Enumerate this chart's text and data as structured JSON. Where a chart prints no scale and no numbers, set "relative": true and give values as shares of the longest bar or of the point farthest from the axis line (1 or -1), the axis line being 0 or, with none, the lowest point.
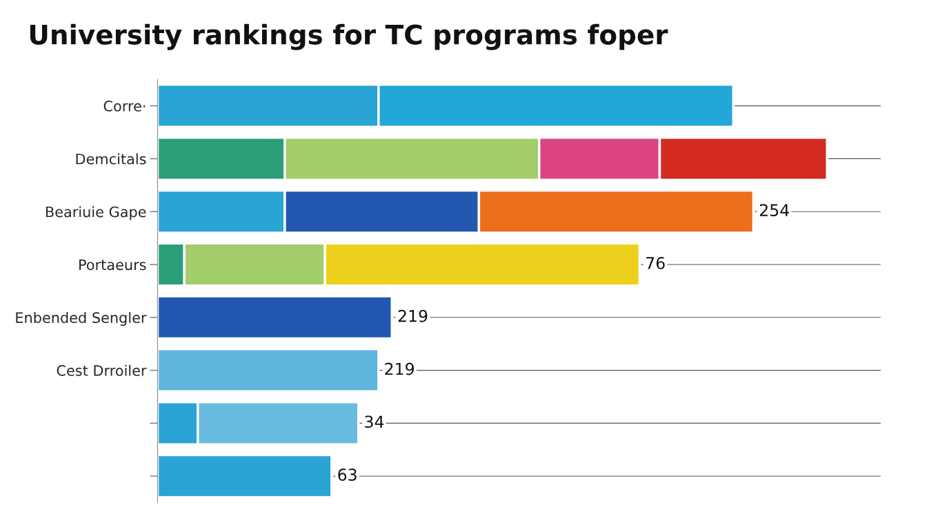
{
  "chart_data": {
    "type": "bar",
    "title": "University rankings for TC programs foper",
    "orientation": "horizontal",
    "stacked": true,
    "relative": true,
    "grid": "y",
    "categories": [
      "Corre·",
      "Demcitals",
      "Beariuie Gape",
      "Portaeurs",
      "Enbended Sengler",
      "Cest Drroiler",
      null,
      null
    ],
    "series": [
      {
        "colors": [
          "#2aa3d5",
          "#2a9e78",
          "#2aa3d5",
          "#2a9e78",
          "#2358b0",
          "#5fb6dd",
          "#2aa3d5",
          "#2aa3d5"
        ],
        "values": [
          0.33,
          0.19,
          0.19,
          0.04,
          0.35,
          0.33,
          0.06,
          0.26
        ]
      },
      {
        "colors": [
          "#23a7d8",
          "#a3cc6a",
          "#2358b0",
          "#a3cc6a",
          null,
          null,
          "#6abbe0",
          null
        ],
        "values": [
          0.53,
          0.38,
          0.29,
          0.21,
          null,
          null,
          0.24,
          null
        ]
      },
      {
        "colors": [
          null,
          "#dc4481",
          "#eb6e1a",
          "#ecd01c",
          null,
          null,
          null,
          null
        ],
        "values": [
          null,
          0.18,
          0.41,
          0.47,
          null,
          null,
          null,
          null
        ]
      },
      {
        "colors": [
          null,
          "#d42b20",
          null,
          null,
          null,
          null,
          null,
          null
        ],
        "values": [
          null,
          0.25,
          null,
          null,
          null,
          null,
          null,
          null
        ]
      }
    ],
    "annotations": [
      {
        "text": "254",
        "x": 0.89,
        "y": "Beariuie Gape"
      },
      {
        "text": "76",
        "x": 0.72,
        "y": "Portaeurs"
      },
      {
        "text": "219",
        "x": 0.35,
        "y": "Enbended Sengler"
      },
      {
        "text": "219",
        "x": 0.33,
        "y": "Cest Drroiler"
      },
      {
        "text": "34",
        "x": 0.3
      },
      {
        "text": "63",
        "x": 0.26
      }
    ]
  }
}
